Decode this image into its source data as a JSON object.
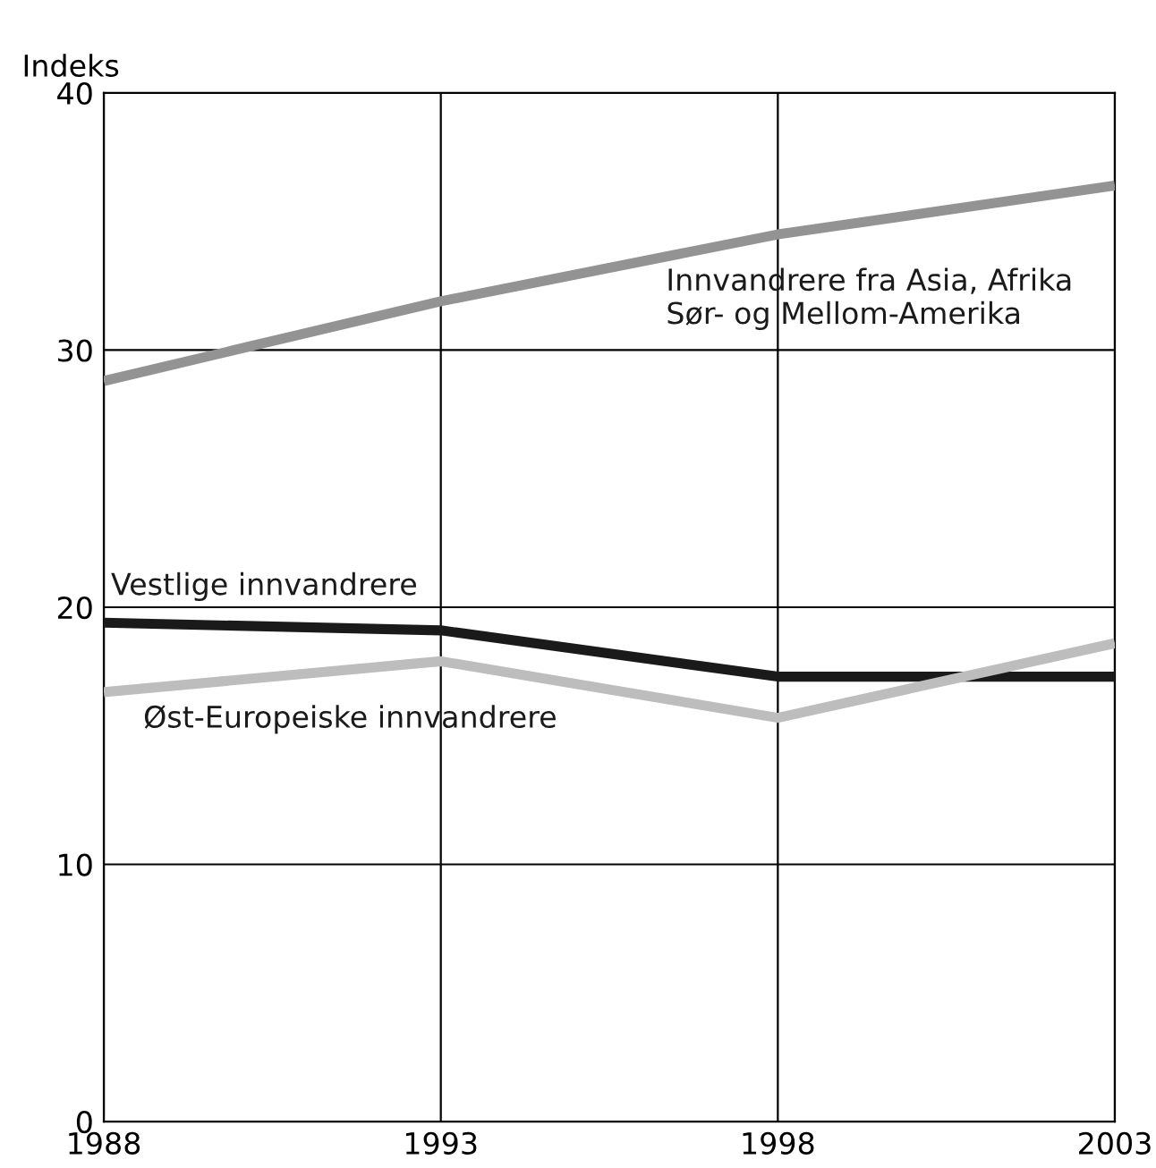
{
  "chart_data": {
    "type": "line",
    "ylabel": "Indeks",
    "x": [
      1988,
      1993,
      1998,
      2003
    ],
    "series": [
      {
        "name": "Innvandrere fra Asia, Afrika\nSør- og Mellom-Amerika",
        "color": "#939393",
        "values": [
          28.8,
          31.9,
          34.5,
          36.4
        ]
      },
      {
        "name": "Vestlige innvandrere",
        "color": "#1a1a1a",
        "values": [
          19.4,
          19.1,
          17.3,
          17.3
        ]
      },
      {
        "name": "Øst-Europeiske innvandrere",
        "color": "#bdbdbd",
        "values": [
          16.7,
          17.9,
          15.7,
          18.6
        ]
      }
    ],
    "xlim": [
      1988,
      2003
    ],
    "xticks": [
      1988,
      1993,
      1998,
      2003
    ],
    "ylim": [
      0,
      40
    ],
    "yticks": [
      0,
      10,
      20,
      30,
      40
    ],
    "grid": true,
    "legend": false,
    "marker": "none",
    "line_style": "solid"
  }
}
